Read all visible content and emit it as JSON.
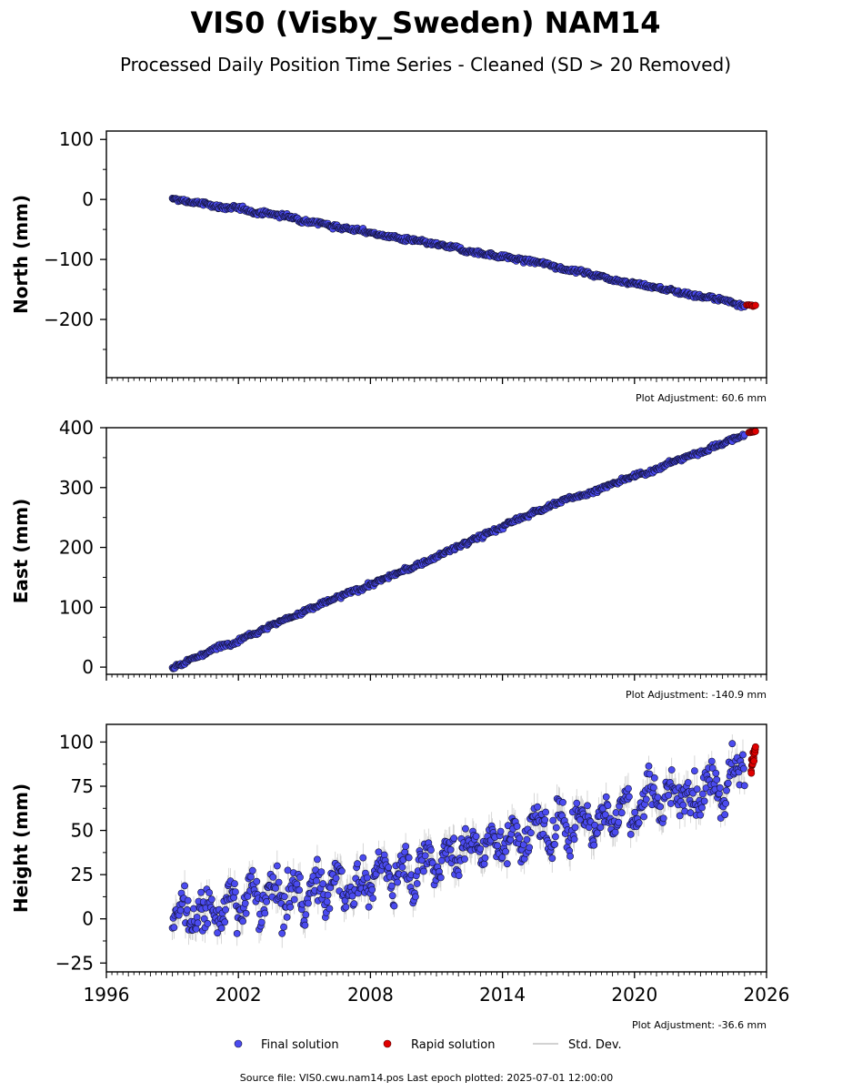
{
  "title": "VIS0 (Visby_Sweden) NAM14",
  "subtitle": "Processed Daily Position Time Series - Cleaned (SD > 20 Removed)",
  "x_tick_labels": [
    "1996",
    "2002",
    "2008",
    "2014",
    "2020",
    "2026"
  ],
  "legend": {
    "final": "Final solution",
    "rapid": "Rapid solution",
    "std": "Std. Dev."
  },
  "footer": "Source file: VIS0.cwu.nam14.pos  Last epoch plotted: 2025-07-01 12:00:00",
  "colors": {
    "final_fill": "#4b4bf0",
    "final_edge": "#111133",
    "rapid_fill": "#e00000",
    "std_line": "#b8b8b8"
  },
  "chart_data": [
    {
      "type": "scatter",
      "ylabel": "North (mm)",
      "xlim": [
        1996,
        2026
      ],
      "ylim": [
        -297,
        114
      ],
      "yticks": [
        100,
        0,
        -100,
        -200
      ],
      "ytick_labels": [
        "100",
        "0",
        "−100",
        "−200"
      ],
      "annotation": "Plot Adjustment: 60.6 mm",
      "final_series": {
        "name": "Final solution",
        "x": [
          1999.0,
          2004.0,
          2010.0,
          2016.0,
          2020.0,
          2025.0
        ],
        "y": [
          0,
          -27,
          -70,
          -108,
          -140,
          -175
        ],
        "noise": 3
      },
      "rapid_series": {
        "name": "Rapid solution",
        "x": [
          2025.1,
          2025.5
        ],
        "y": [
          -176,
          -177
        ]
      }
    },
    {
      "type": "scatter",
      "ylabel": "East (mm)",
      "xlim": [
        1996,
        2026
      ],
      "ylim": [
        -12,
        400
      ],
      "yticks": [
        400,
        300,
        200,
        100,
        0
      ],
      "ytick_labels": [
        "400",
        "300",
        "200",
        "100",
        "0"
      ],
      "annotation": "Plot Adjustment: -140.9 mm",
      "final_series": {
        "name": "Final solution",
        "x": [
          1999.0,
          2004.0,
          2010.0,
          2016.0,
          2020.0,
          2025.0
        ],
        "y": [
          0,
          78,
          168,
          268,
          318,
          388
        ],
        "noise": 3
      },
      "rapid_series": {
        "name": "Rapid solution",
        "x": [
          2025.2,
          2025.5
        ],
        "y": [
          392,
          394
        ]
      }
    },
    {
      "type": "scatter",
      "ylabel": "Height (mm)",
      "xlim": [
        1996,
        2026
      ],
      "ylim": [
        -30,
        110
      ],
      "yticks": [
        100,
        75,
        50,
        25,
        0,
        -25
      ],
      "ytick_labels": [
        "100",
        "75",
        "50",
        "25",
        "0",
        "−25"
      ],
      "annotation": "Plot Adjustment: -36.6 mm",
      "final_series": {
        "name": "Final solution",
        "x": [
          1999.0,
          2002.0,
          2005.0,
          2008.0,
          2011.0,
          2014.0,
          2017.0,
          2020.0,
          2023.0,
          2025.0
        ],
        "y": [
          2,
          8,
          15,
          22,
          35,
          45,
          55,
          63,
          75,
          85
        ],
        "noise": 9
      },
      "rapid_series": {
        "name": "Rapid solution",
        "x": [
          2025.3,
          2025.4,
          2025.5
        ],
        "y": [
          86,
          92,
          97
        ]
      }
    }
  ]
}
